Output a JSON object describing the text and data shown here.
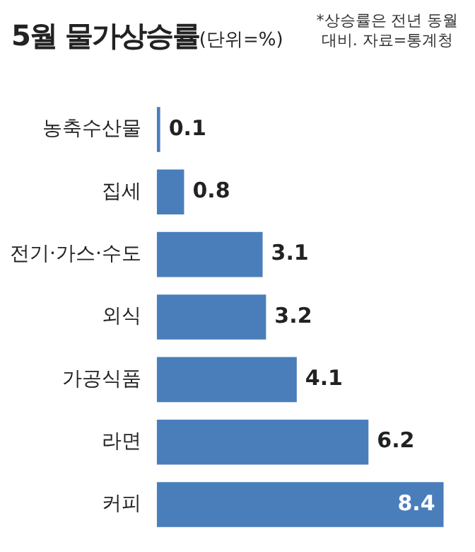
{
  "chart_data": {
    "type": "bar",
    "title": "5월 물가상승률",
    "subtitle": "(단위=%)",
    "annotations": [
      "*상승률은 전년 동월 대비. 자료=통계청"
    ],
    "categories": [
      "농축수산물",
      "집세",
      "전기·가스·수도",
      "외식",
      "가공식품",
      "라면",
      "커피"
    ],
    "values": [
      0.1,
      0.8,
      3.1,
      3.2,
      4.1,
      6.2,
      8.4
    ],
    "color": "#4a7ebb",
    "orientation": "horizontal",
    "data_labels": true
  }
}
